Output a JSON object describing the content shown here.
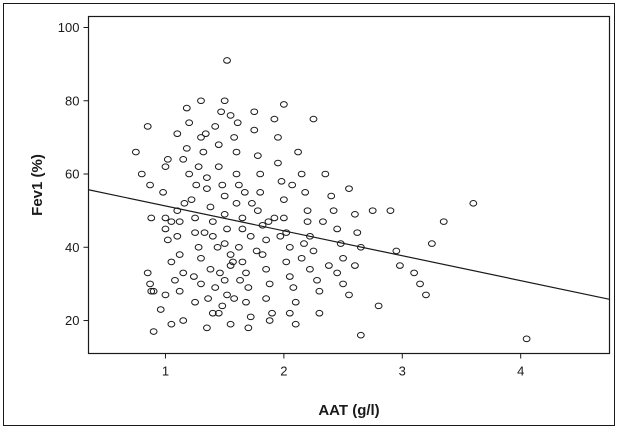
{
  "chart_data": {
    "type": "scatter",
    "xlabel": "AAT (g/l)",
    "ylabel": "Fev1 (%)",
    "xlim": [
      0.35,
      4.75
    ],
    "ylim": [
      11,
      103
    ],
    "x_ticks": [
      1,
      2,
      3,
      4
    ],
    "y_ticks": [
      20,
      40,
      60,
      80,
      100
    ],
    "grid": false,
    "marker": "open-circle",
    "colors": {
      "marker": "#1a1a1a",
      "line": "#1a1a1a",
      "frame": "#1a1a1a"
    },
    "trend_line": {
      "x": [
        0.35,
        4.75
      ],
      "y": [
        55.7,
        25.8
      ]
    },
    "points": [
      [
        0.75,
        66
      ],
      [
        0.8,
        60
      ],
      [
        0.85,
        73
      ],
      [
        0.87,
        57
      ],
      [
        0.88,
        48
      ],
      [
        0.85,
        33
      ],
      [
        0.87,
        30
      ],
      [
        0.88,
        28
      ],
      [
        0.9,
        17
      ],
      [
        0.9,
        28
      ],
      [
        0.98,
        55
      ],
      [
        1.0,
        62
      ],
      [
        1.02,
        64
      ],
      [
        1.0,
        48
      ],
      [
        1.0,
        45
      ],
      [
        1.02,
        42
      ],
      [
        1.05,
        36
      ],
      [
        1.0,
        27
      ],
      [
        1.05,
        19
      ],
      [
        1.1,
        71
      ],
      [
        1.1,
        50
      ],
      [
        1.12,
        47
      ],
      [
        1.1,
        43
      ],
      [
        1.12,
        38
      ],
      [
        1.15,
        33
      ],
      [
        1.12,
        28
      ],
      [
        1.15,
        20
      ],
      [
        1.15,
        64
      ],
      [
        1.2,
        60
      ],
      [
        1.2,
        74
      ],
      [
        1.18,
        78
      ],
      [
        1.22,
        53
      ],
      [
        1.25,
        48
      ],
      [
        1.25,
        44
      ],
      [
        1.28,
        40
      ],
      [
        1.3,
        37
      ],
      [
        1.3,
        30
      ],
      [
        1.25,
        25
      ],
      [
        1.3,
        80
      ],
      [
        1.3,
        70
      ],
      [
        1.32,
        66
      ],
      [
        1.35,
        59
      ],
      [
        1.35,
        56
      ],
      [
        1.38,
        51
      ],
      [
        1.4,
        47
      ],
      [
        1.4,
        43
      ],
      [
        1.38,
        34
      ],
      [
        1.42,
        29
      ],
      [
        1.4,
        22
      ],
      [
        1.35,
        18
      ],
      [
        1.42,
        73
      ],
      [
        1.45,
        68
      ],
      [
        1.45,
        62
      ],
      [
        1.48,
        57
      ],
      [
        1.5,
        54
      ],
      [
        1.5,
        49
      ],
      [
        1.52,
        45
      ],
      [
        1.5,
        41
      ],
      [
        1.55,
        38
      ],
      [
        1.55,
        35
      ],
      [
        1.5,
        31
      ],
      [
        1.52,
        27
      ],
      [
        1.48,
        24
      ],
      [
        1.45,
        22
      ],
      [
        1.55,
        19
      ],
      [
        1.5,
        80
      ],
      [
        1.55,
        76
      ],
      [
        1.58,
        70
      ],
      [
        1.6,
        66
      ],
      [
        1.6,
        60
      ],
      [
        1.62,
        57
      ],
      [
        1.6,
        52
      ],
      [
        1.65,
        48
      ],
      [
        1.65,
        45
      ],
      [
        1.62,
        40
      ],
      [
        1.65,
        36
      ],
      [
        1.68,
        33
      ],
      [
        1.7,
        29
      ],
      [
        1.68,
        25
      ],
      [
        1.72,
        21
      ],
      [
        1.7,
        18
      ],
      [
        1.75,
        77
      ],
      [
        1.75,
        72
      ],
      [
        1.78,
        65
      ],
      [
        1.8,
        60
      ],
      [
        1.8,
        55
      ],
      [
        1.78,
        50
      ],
      [
        1.82,
        46
      ],
      [
        1.85,
        42
      ],
      [
        1.82,
        38
      ],
      [
        1.85,
        34
      ],
      [
        1.88,
        30
      ],
      [
        1.85,
        26
      ],
      [
        1.9,
        22
      ],
      [
        1.88,
        20
      ],
      [
        1.52,
        91
      ],
      [
        1.92,
        75
      ],
      [
        1.95,
        70
      ],
      [
        1.95,
        63
      ],
      [
        1.98,
        58
      ],
      [
        2.0,
        53
      ],
      [
        2.0,
        48
      ],
      [
        2.02,
        44
      ],
      [
        2.05,
        40
      ],
      [
        2.02,
        36
      ],
      [
        2.05,
        32
      ],
      [
        2.08,
        29
      ],
      [
        2.1,
        25
      ],
      [
        2.05,
        22
      ],
      [
        2.1,
        19
      ],
      [
        2.0,
        79
      ],
      [
        2.12,
        66
      ],
      [
        2.15,
        60
      ],
      [
        2.18,
        55
      ],
      [
        2.2,
        50
      ],
      [
        2.2,
        47
      ],
      [
        2.22,
        43
      ],
      [
        2.25,
        39
      ],
      [
        2.22,
        34
      ],
      [
        2.28,
        31
      ],
      [
        2.3,
        28
      ],
      [
        2.3,
        22
      ],
      [
        2.25,
        75
      ],
      [
        2.35,
        60
      ],
      [
        2.4,
        54
      ],
      [
        2.42,
        50
      ],
      [
        2.45,
        45
      ],
      [
        2.48,
        41
      ],
      [
        2.5,
        37
      ],
      [
        2.45,
        33
      ],
      [
        2.5,
        30
      ],
      [
        2.55,
        27
      ],
      [
        2.55,
        56
      ],
      [
        2.6,
        49
      ],
      [
        2.62,
        44
      ],
      [
        2.65,
        40
      ],
      [
        2.6,
        35
      ],
      [
        2.65,
        16
      ],
      [
        2.75,
        50
      ],
      [
        2.8,
        24
      ],
      [
        2.9,
        50
      ],
      [
        2.95,
        39
      ],
      [
        2.98,
        35
      ],
      [
        3.1,
        33
      ],
      [
        3.15,
        30
      ],
      [
        3.2,
        27
      ],
      [
        3.25,
        41
      ],
      [
        3.35,
        47
      ],
      [
        3.6,
        52
      ],
      [
        4.05,
        15
      ],
      [
        1.05,
        47
      ],
      [
        1.18,
        67
      ],
      [
        1.28,
        62
      ],
      [
        1.33,
        44
      ],
      [
        1.44,
        40
      ],
      [
        1.57,
        36
      ],
      [
        1.63,
        31
      ],
      [
        1.72,
        43
      ],
      [
        1.77,
        39
      ],
      [
        1.92,
        48
      ],
      [
        2.07,
        57
      ],
      [
        2.17,
        41
      ],
      [
        2.33,
        47
      ],
      [
        2.38,
        35
      ],
      [
        1.24,
        32
      ],
      [
        1.36,
        26
      ],
      [
        1.46,
        33
      ],
      [
        1.58,
        26
      ],
      [
        1.67,
        55
      ],
      [
        1.73,
        52
      ],
      [
        1.87,
        47
      ],
      [
        1.97,
        43
      ],
      [
        2.15,
        37
      ],
      [
        0.96,
        23
      ],
      [
        1.08,
        31
      ],
      [
        1.16,
        52
      ],
      [
        1.26,
        57
      ],
      [
        1.34,
        71
      ],
      [
        1.47,
        77
      ],
      [
        1.61,
        74
      ]
    ]
  }
}
